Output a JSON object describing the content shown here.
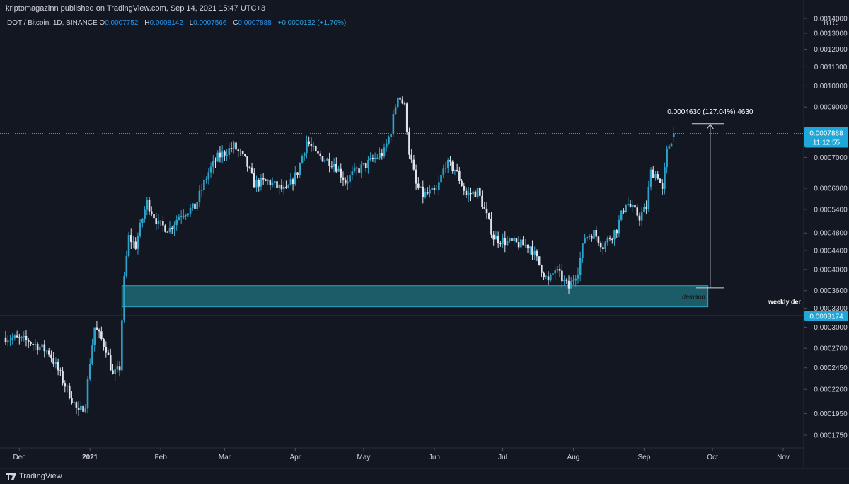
{
  "header": {
    "published_text": "kriptomagazinn published on TradingView.com, Sep 14, 2021 15:47 UTC+3"
  },
  "legend": {
    "symbol": "DOT / Bitcoin, 1D, BINANCE",
    "open_label": "O",
    "open": "0.0007752",
    "high_label": "H",
    "high": "0.0008142",
    "low_label": "L",
    "low": "0.0007566",
    "close_label": "C",
    "close": "0.0007888",
    "change": "+0.0000132 (+1.70%)"
  },
  "footer": {
    "brand": "TradingView"
  },
  "colors": {
    "background": "#131722",
    "up_candle": "#2ea3c9",
    "down_candle": "#e0e3eb",
    "demand_zone": "#1e6f7c",
    "price_label": "#1ea7d8",
    "text": "#d1d4dc"
  },
  "annotations": {
    "measure_label": "0.0004630 (127.04%) 4630",
    "demand_label": "demand",
    "weekly_label": "weekly der",
    "current_price": "0.0007888",
    "countdown": "11:12:55",
    "support_price": "0.0003174"
  },
  "chart_data": {
    "type": "candlestick",
    "scale": "log",
    "y_unit": "BTC",
    "y_range": [
      0.000166,
      0.00142
    ],
    "y_ticks": [
      "0.0014000",
      "0.0013000",
      "0.0012000",
      "0.0011000",
      "0.0010000",
      "0.0009000",
      "0.0007000",
      "0.0006000",
      "0.0005400",
      "0.0004800",
      "0.0004400",
      "0.0004000",
      "0.0003600",
      "0.0003300",
      "0.0003000",
      "0.0002700",
      "0.0002450",
      "0.0002200",
      "0.0001950",
      "0.0001750"
    ],
    "x_ticks": [
      {
        "label": "Dec",
        "date": "2020-12-01",
        "bold": false
      },
      {
        "label": "2021",
        "date": "2021-01-01",
        "bold": true
      },
      {
        "label": "Feb",
        "date": "2021-02-01",
        "bold": false
      },
      {
        "label": "Mar",
        "date": "2021-03-01",
        "bold": false
      },
      {
        "label": "Apr",
        "date": "2021-04-01",
        "bold": false
      },
      {
        "label": "May",
        "date": "2021-05-01",
        "bold": false
      },
      {
        "label": "Jun",
        "date": "2021-06-01",
        "bold": false
      },
      {
        "label": "Jul",
        "date": "2021-07-01",
        "bold": false
      },
      {
        "label": "Aug",
        "date": "2021-08-01",
        "bold": false
      },
      {
        "label": "Sep",
        "date": "2021-09-01",
        "bold": false
      },
      {
        "label": "Oct",
        "date": "2021-10-01",
        "bold": false
      },
      {
        "label": "Nov",
        "date": "2021-11-01",
        "bold": false
      }
    ],
    "x_range": [
      "2020-11-25",
      "2021-11-10"
    ],
    "price_anchors": [
      [
        "2020-11-25",
        0.000285
      ],
      [
        "2020-12-05",
        0.00028
      ],
      [
        "2020-12-14",
        0.000265
      ],
      [
        "2020-12-20",
        0.00023
      ],
      [
        "2020-12-27",
        0.000195
      ],
      [
        "2020-12-30",
        0.000205
      ],
      [
        "2021-01-03",
        0.0003
      ],
      [
        "2021-01-08",
        0.00027
      ],
      [
        "2021-01-11",
        0.000235
      ],
      [
        "2021-01-14",
        0.000245
      ],
      [
        "2021-01-16",
        0.00038
      ],
      [
        "2021-01-18",
        0.00047
      ],
      [
        "2021-01-21",
        0.00045
      ],
      [
        "2021-01-26",
        0.00056
      ],
      [
        "2021-01-31",
        0.0005
      ],
      [
        "2021-02-05",
        0.00049
      ],
      [
        "2021-02-10",
        0.00053
      ],
      [
        "2021-02-16",
        0.000545
      ],
      [
        "2021-02-22",
        0.00065
      ],
      [
        "2021-02-26",
        0.0007
      ],
      [
        "2021-03-05",
        0.00074
      ],
      [
        "2021-03-10",
        0.00069
      ],
      [
        "2021-03-14",
        0.000615
      ],
      [
        "2021-03-20",
        0.00062
      ],
      [
        "2021-03-28",
        0.00059
      ],
      [
        "2021-04-02",
        0.00065
      ],
      [
        "2021-04-06",
        0.00076
      ],
      [
        "2021-04-10",
        0.00071
      ],
      [
        "2021-04-18",
        0.00068
      ],
      [
        "2021-04-23",
        0.00062
      ],
      [
        "2021-04-27",
        0.00065
      ],
      [
        "2021-05-03",
        0.00068
      ],
      [
        "2021-05-10",
        0.00072
      ],
      [
        "2021-05-13",
        0.0008
      ],
      [
        "2021-05-16",
        0.00096
      ],
      [
        "2021-05-19",
        0.0009
      ],
      [
        "2021-05-21",
        0.00072
      ],
      [
        "2021-05-24",
        0.00061
      ],
      [
        "2021-05-27",
        0.00058
      ],
      [
        "2021-06-02",
        0.00059
      ],
      [
        "2021-06-06",
        0.00068
      ],
      [
        "2021-06-10",
        0.00066
      ],
      [
        "2021-06-15",
        0.00058
      ],
      [
        "2021-06-20",
        0.00059
      ],
      [
        "2021-06-27",
        0.00047
      ],
      [
        "2021-07-02",
        0.00046
      ],
      [
        "2021-07-07",
        0.000455
      ],
      [
        "2021-07-13",
        0.00045
      ],
      [
        "2021-07-17",
        0.00041
      ],
      [
        "2021-07-21",
        0.000375
      ],
      [
        "2021-07-24",
        0.0004
      ],
      [
        "2021-07-30",
        0.000365
      ],
      [
        "2021-08-03",
        0.0004
      ],
      [
        "2021-08-06",
        0.00047
      ],
      [
        "2021-08-10",
        0.00048
      ],
      [
        "2021-08-14",
        0.00045
      ],
      [
        "2021-08-20",
        0.00049
      ],
      [
        "2021-08-24",
        0.00056
      ],
      [
        "2021-08-30",
        0.00052
      ],
      [
        "2021-09-02",
        0.000545
      ],
      [
        "2021-09-04",
        0.00065
      ],
      [
        "2021-09-07",
        0.00064
      ],
      [
        "2021-09-09",
        0.00059
      ],
      [
        "2021-09-11",
        0.00072
      ],
      [
        "2021-09-14",
        0.000789
      ]
    ],
    "demand_zone": {
      "start": "2021-01-15",
      "end": "2021-09-29",
      "low": 0.000332,
      "high": 0.000369
    },
    "support_line": 0.0003174,
    "current_price": 0.0007888,
    "measure": {
      "date": "2021-09-30",
      "from": 0.000365,
      "to": 0.000828
    }
  }
}
